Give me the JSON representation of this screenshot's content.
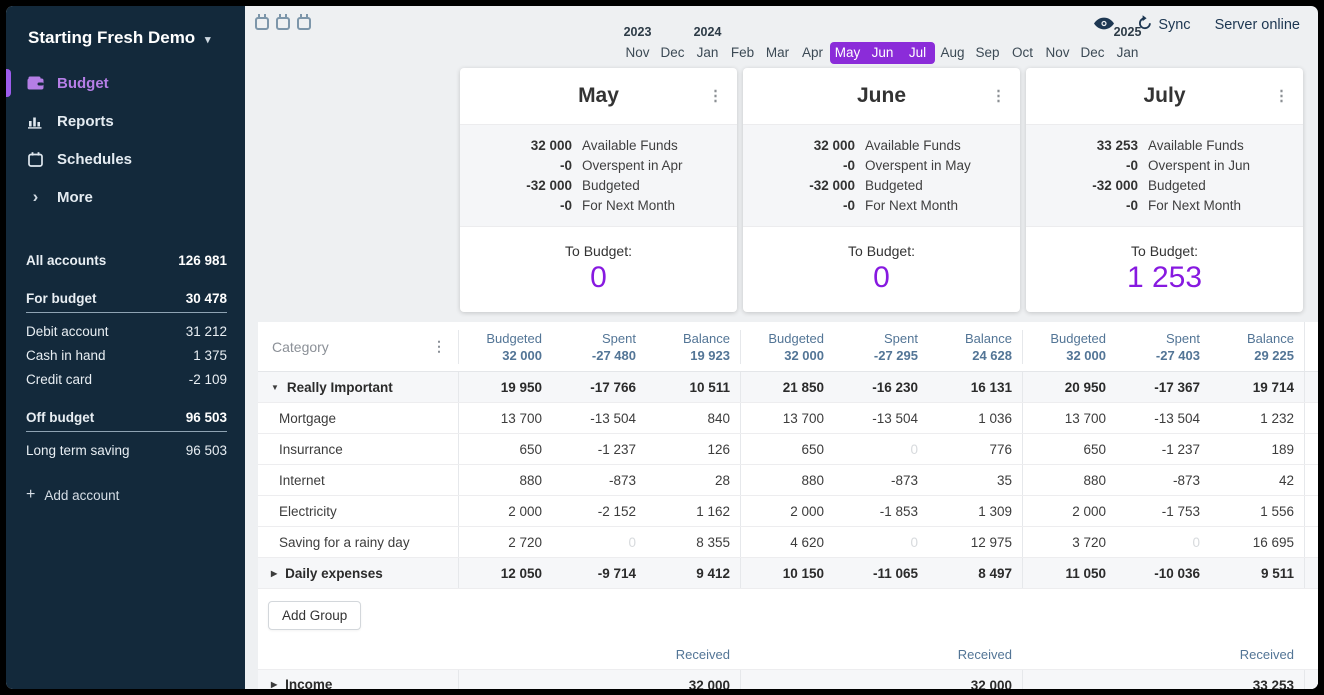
{
  "icons": {
    "caret_down": "▾",
    "kebab": "⋮",
    "expanded_arrow": "▼",
    "collapsed_arrow": "▶",
    "plus": "+",
    "chevron_right": "›"
  },
  "colors": {
    "sidebar_bg": "#13293b",
    "accent_purple": "#8719e0",
    "selected_month_bg": "#8b2cd9",
    "nav_active_purple": "#b57ee6",
    "table_header_blue": "#537596"
  },
  "sidebar": {
    "file_menu": {
      "label": "Starting Fresh Demo"
    },
    "nav": [
      {
        "label": "Budget",
        "active": true
      },
      {
        "label": "Reports"
      },
      {
        "label": "Schedules"
      },
      {
        "label": "More"
      }
    ],
    "accounts": {
      "all": {
        "label": "All accounts",
        "value": "126 981"
      },
      "groups": [
        {
          "label": "For budget",
          "value": "30 478",
          "items": [
            {
              "label": "Debit account",
              "value": "31 212"
            },
            {
              "label": "Cash in hand",
              "value": "1 375"
            },
            {
              "label": "Credit card",
              "value": "-2 109"
            }
          ]
        },
        {
          "label": "Off budget",
          "value": "96 503",
          "items": [
            {
              "label": "Long term saving",
              "value": "96 503"
            }
          ]
        }
      ],
      "add_label": "Add account"
    }
  },
  "topbar": {
    "months": [
      {
        "year": "2023",
        "label": "Nov"
      },
      {
        "label": "Dec"
      },
      {
        "year": "2024",
        "label": "Jan"
      },
      {
        "label": "Feb"
      },
      {
        "label": "Mar"
      },
      {
        "label": "Apr"
      },
      {
        "label": "May",
        "selected": true
      },
      {
        "label": "Jun",
        "selected": true
      },
      {
        "label": "Jul",
        "selected": true
      },
      {
        "label": "Aug"
      },
      {
        "label": "Sep"
      },
      {
        "label": "Oct"
      },
      {
        "label": "Nov"
      },
      {
        "label": "Dec"
      },
      {
        "year": "2025",
        "label": "Jan"
      }
    ],
    "sync_label": "Sync",
    "server_status": "Server online"
  },
  "month_cards": [
    {
      "title": "May",
      "summary": [
        {
          "value": "32 000",
          "label": "Available Funds"
        },
        {
          "value": "-0",
          "label": "Overspent in Apr"
        },
        {
          "value": "-32 000",
          "label": "Budgeted"
        },
        {
          "value": "-0",
          "label": "For Next Month"
        }
      ],
      "to_budget_label": "To Budget:",
      "to_budget_value": "0"
    },
    {
      "title": "June",
      "summary": [
        {
          "value": "32 000",
          "label": "Available Funds"
        },
        {
          "value": "-0",
          "label": "Overspent in May"
        },
        {
          "value": "-32 000",
          "label": "Budgeted"
        },
        {
          "value": "-0",
          "label": "For Next Month"
        }
      ],
      "to_budget_label": "To Budget:",
      "to_budget_value": "0"
    },
    {
      "title": "July",
      "summary": [
        {
          "value": "33 253",
          "label": "Available Funds"
        },
        {
          "value": "-0",
          "label": "Overspent in Jun"
        },
        {
          "value": "-32 000",
          "label": "Budgeted"
        },
        {
          "value": "-0",
          "label": "For Next Month"
        }
      ],
      "to_budget_label": "To Budget:",
      "to_budget_value": "1 253"
    }
  ],
  "budget_table": {
    "category_header": "Category",
    "col_labels": [
      "Budgeted",
      "Spent",
      "Balance"
    ],
    "totals": [
      [
        "32 000",
        "-27 480",
        "19 923"
      ],
      [
        "32 000",
        "-27 295",
        "24 628"
      ],
      [
        "32 000",
        "-27 403",
        "29 225"
      ]
    ],
    "rows": [
      {
        "name": "Really Important",
        "kind": "group",
        "arrow": "expanded",
        "cells": [
          [
            "19 950",
            "-17 766",
            "10 511"
          ],
          [
            "21 850",
            "-16 230",
            "16 131"
          ],
          [
            "20 950",
            "-17 367",
            "19 714"
          ]
        ]
      },
      {
        "name": "Mortgage",
        "kind": "category",
        "cells": [
          [
            "13 700",
            "-13 504",
            "840"
          ],
          [
            "13 700",
            "-13 504",
            "1 036"
          ],
          [
            "13 700",
            "-13 504",
            "1 232"
          ]
        ]
      },
      {
        "name": "Insurrance",
        "kind": "category",
        "cells": [
          [
            "650",
            "-1 237",
            "126"
          ],
          [
            "650",
            "0",
            "776"
          ],
          [
            "650",
            "-1 237",
            "189"
          ]
        ]
      },
      {
        "name": "Internet",
        "kind": "category",
        "cells": [
          [
            "880",
            "-873",
            "28"
          ],
          [
            "880",
            "-873",
            "35"
          ],
          [
            "880",
            "-873",
            "42"
          ]
        ]
      },
      {
        "name": "Electricity",
        "kind": "category",
        "cells": [
          [
            "2 000",
            "-2 152",
            "1 162"
          ],
          [
            "2 000",
            "-1 853",
            "1 309"
          ],
          [
            "2 000",
            "-1 753",
            "1 556"
          ]
        ]
      },
      {
        "name": "Saving for a rainy day",
        "kind": "category",
        "cells": [
          [
            "2 720",
            "0",
            "8 355"
          ],
          [
            "4 620",
            "0",
            "12 975"
          ],
          [
            "3 720",
            "0",
            "16 695"
          ]
        ]
      },
      {
        "name": "Daily expenses",
        "kind": "group",
        "arrow": "collapsed",
        "cells": [
          [
            "12 050",
            "-9 714",
            "9 412"
          ],
          [
            "10 150",
            "-11 065",
            "8 497"
          ],
          [
            "11 050",
            "-10 036",
            "9 511"
          ]
        ]
      }
    ],
    "add_group_label": "Add Group",
    "received_label": "Received",
    "income_row": {
      "name": "Income",
      "arrow": "collapsed",
      "received": [
        "32 000",
        "32 000",
        "33 253"
      ]
    }
  }
}
